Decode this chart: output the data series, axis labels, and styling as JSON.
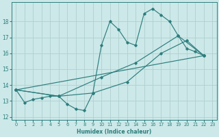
{
  "xlabel": "Humidex (Indice chaleur)",
  "bg_color": "#cce8e8",
  "line_color": "#2d7d7d",
  "grid_color": "#b0d0d0",
  "xlim": [
    -0.5,
    23.5
  ],
  "ylim": [
    11.8,
    19.2
  ],
  "xticks": [
    0,
    1,
    2,
    3,
    4,
    5,
    6,
    7,
    8,
    9,
    10,
    11,
    12,
    13,
    14,
    15,
    16,
    17,
    18,
    19,
    20,
    21,
    22,
    23
  ],
  "yticks": [
    12,
    13,
    14,
    15,
    16,
    17,
    18
  ],
  "line1_x": [
    0,
    1,
    2,
    3,
    4,
    5,
    6,
    7,
    8,
    9,
    10,
    11,
    12,
    13,
    14,
    15,
    16,
    17,
    18,
    19,
    20,
    21,
    22
  ],
  "line1_y": [
    13.7,
    12.9,
    13.1,
    13.2,
    13.3,
    13.3,
    12.8,
    12.5,
    12.4,
    13.5,
    16.5,
    18.0,
    17.5,
    16.7,
    16.5,
    18.5,
    18.8,
    18.4,
    18.0,
    17.1,
    16.3,
    16.1,
    15.85
  ],
  "line2_x": [
    0,
    22
  ],
  "line2_y": [
    13.7,
    15.85
  ],
  "line3_x": [
    0,
    5,
    9,
    13,
    17,
    20,
    22
  ],
  "line3_y": [
    13.7,
    13.3,
    13.5,
    14.2,
    16.0,
    16.8,
    15.85
  ],
  "line4_x": [
    0,
    5,
    10,
    14,
    19,
    22
  ],
  "line4_y": [
    13.7,
    13.3,
    14.5,
    15.4,
    17.1,
    15.85
  ]
}
